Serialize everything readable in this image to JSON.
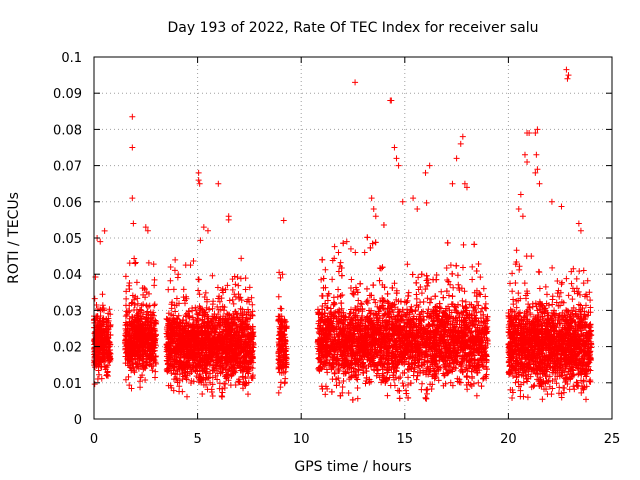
{
  "chart_data": {
    "type": "scatter",
    "title": "Day 193 of 2022, Rate Of TEC Index for receiver salu",
    "xlabel": "GPS time / hours",
    "ylabel": "ROTI / TECUs",
    "xlim": [
      0,
      25
    ],
    "ylim": [
      0,
      0.1
    ],
    "x_ticks": [
      0,
      5,
      10,
      15,
      20,
      25
    ],
    "y_ticks": [
      0,
      0.01,
      0.02,
      0.03,
      0.04,
      0.05,
      0.06,
      0.07,
      0.08,
      0.09,
      0.1
    ],
    "x_tick_labels": [
      "0",
      "5",
      "10",
      "15",
      "20",
      "25"
    ],
    "y_tick_labels": [
      "0",
      "0.01",
      "0.02",
      "0.03",
      "0.04",
      "0.05",
      "0.06",
      "0.07",
      "0.08",
      "0.09",
      "0.1"
    ],
    "grid": true,
    "marker": "+",
    "marker_color": "#ff0000",
    "series": [
      {
        "segments": [
          {
            "x_range": [
              0.0,
              0.8
            ],
            "y_median": 0.021,
            "y_spread": 0.008
          },
          {
            "x_range": [
              1.5,
              3.0
            ],
            "y_median": 0.021,
            "y_spread": 0.008
          },
          {
            "x_range": [
              3.5,
              7.7
            ],
            "y_median": 0.02,
            "y_spread": 0.009
          },
          {
            "x_range": [
              8.9,
              9.3
            ],
            "y_median": 0.02,
            "y_spread": 0.009
          },
          {
            "x_range": [
              10.8,
              19.0
            ],
            "y_median": 0.021,
            "y_spread": 0.01
          },
          {
            "x_range": [
              20.0,
              24.0
            ],
            "y_median": 0.02,
            "y_spread": 0.01
          }
        ],
        "outliers": [
          [
            1.85,
            0.0835
          ],
          [
            1.85,
            0.075
          ],
          [
            1.85,
            0.061
          ],
          [
            1.9,
            0.054
          ],
          [
            0.15,
            0.05
          ],
          [
            0.3,
            0.049
          ],
          [
            2.5,
            0.053
          ],
          [
            2.6,
            0.052
          ],
          [
            5.05,
            0.068
          ],
          [
            5.05,
            0.066
          ],
          [
            5.1,
            0.065
          ],
          [
            6.0,
            0.065
          ],
          [
            6.5,
            0.056
          ],
          [
            6.5,
            0.055
          ],
          [
            5.3,
            0.053
          ],
          [
            5.5,
            0.052
          ],
          [
            12.6,
            0.093
          ],
          [
            14.3,
            0.088
          ],
          [
            14.35,
            0.088
          ],
          [
            14.5,
            0.075
          ],
          [
            14.6,
            0.072
          ],
          [
            14.7,
            0.07
          ],
          [
            17.8,
            0.078
          ],
          [
            17.7,
            0.076
          ],
          [
            17.5,
            0.072
          ],
          [
            16.2,
            0.07
          ],
          [
            16.0,
            0.068
          ],
          [
            17.3,
            0.065
          ],
          [
            17.9,
            0.065
          ],
          [
            18.0,
            0.064
          ],
          [
            13.4,
            0.061
          ],
          [
            13.5,
            0.058
          ],
          [
            13.6,
            0.056
          ],
          [
            14.9,
            0.06
          ],
          [
            15.4,
            0.061
          ],
          [
            15.6,
            0.058
          ],
          [
            22.8,
            0.0965
          ],
          [
            22.9,
            0.095
          ],
          [
            22.85,
            0.094
          ],
          [
            20.9,
            0.079
          ],
          [
            21.0,
            0.079
          ],
          [
            21.3,
            0.079
          ],
          [
            21.4,
            0.08
          ],
          [
            21.35,
            0.073
          ],
          [
            20.8,
            0.073
          ],
          [
            20.9,
            0.071
          ],
          [
            21.4,
            0.069
          ],
          [
            21.3,
            0.068
          ],
          [
            21.5,
            0.065
          ],
          [
            20.6,
            0.062
          ],
          [
            20.5,
            0.058
          ],
          [
            20.7,
            0.056
          ],
          [
            22.1,
            0.06
          ],
          [
            23.4,
            0.054
          ],
          [
            23.5,
            0.052
          ],
          [
            3.7,
            0.042
          ],
          [
            9.1,
            0.04
          ],
          [
            9.0,
            0.039
          ],
          [
            11.0,
            0.034
          ],
          [
            12.2,
            0.049
          ],
          [
            12.4,
            0.047
          ],
          [
            11.8,
            0.046
          ]
        ]
      }
    ]
  }
}
